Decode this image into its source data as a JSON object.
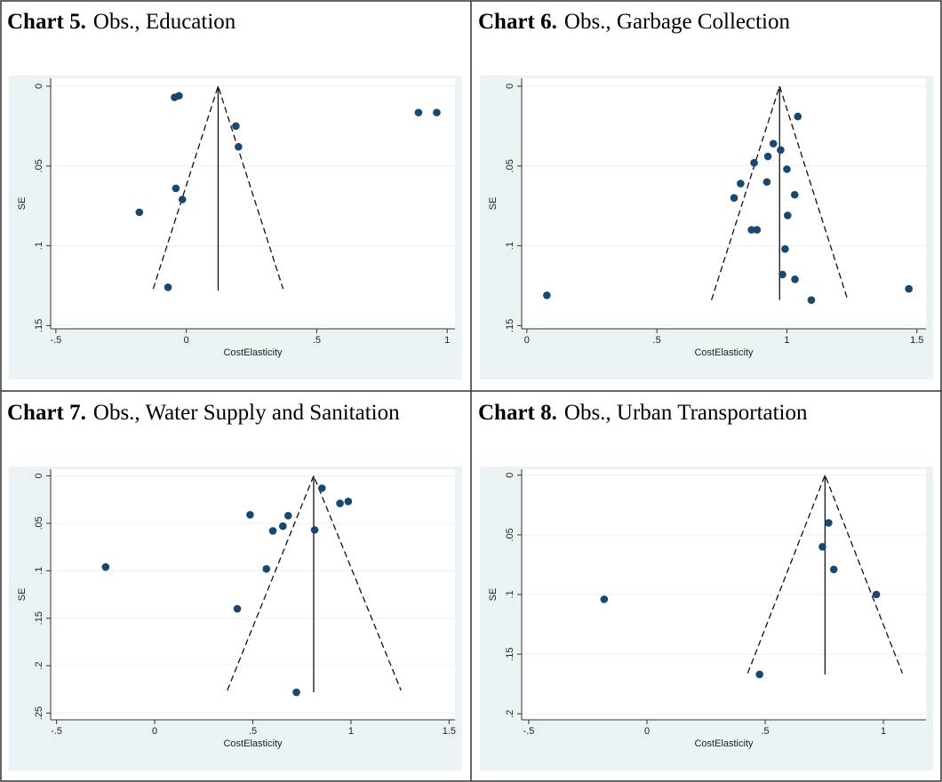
{
  "chart_data": [
    {
      "type": "scatter",
      "label": "Chart 5.",
      "title": "Obs., Education",
      "xlabel": "CostElasticity",
      "ylabel": "SE",
      "color": "#1a476f",
      "y_inverted": true,
      "grid": true,
      "x": [
        -0.045,
        -0.028,
        0.89,
        0.96,
        0.19,
        0.2,
        -0.04,
        -0.015,
        -0.18,
        -0.07
      ],
      "y": [
        0.007,
        0.006,
        0.0165,
        0.0165,
        0.025,
        0.038,
        0.064,
        0.071,
        0.079,
        0.126
      ],
      "xlim": [
        -0.52,
        1.03
      ],
      "ylim": [
        -0.005,
        0.152
      ],
      "xticks": [
        {
          "value": -0.5,
          "label": "-.5"
        },
        0,
        {
          "value": 0.5,
          "label": ".5"
        },
        1
      ],
      "yticks": [
        0,
        {
          "value": 0.05,
          "label": ".05"
        },
        {
          "value": 0.1,
          "label": ".1"
        },
        {
          "value": 0.15,
          "label": ".15"
        }
      ],
      "reference_lines": [
        {
          "x": [
            0.122,
            0.122
          ],
          "y": [
            0,
            0.128
          ],
          "dashed": false
        },
        {
          "x": [
            -0.127,
            0.122,
            0.371
          ],
          "y": [
            0.127,
            0,
            0.127
          ],
          "dashed": true
        }
      ]
    },
    {
      "type": "scatter",
      "label": "Chart 6.",
      "title": "Obs., Garbage Collection",
      "xlabel": "CostElasticity",
      "ylabel": "SE",
      "color": "#1a476f",
      "y_inverted": true,
      "grid": true,
      "x": [
        1.042,
        0.948,
        0.976,
        0.927,
        1.0,
        0.874,
        0.822,
        0.923,
        1.03,
        0.797,
        1.003,
        0.864,
        0.885,
        0.993,
        0.983,
        1.031,
        1.094,
        1.469,
        0.077
      ],
      "y": [
        0.019,
        0.036,
        0.04,
        0.044,
        0.052,
        0.048,
        0.061,
        0.06,
        0.068,
        0.07,
        0.081,
        0.09,
        0.09,
        0.102,
        0.118,
        0.121,
        0.134,
        0.127,
        0.131
      ],
      "xlim": [
        -0.02,
        1.535
      ],
      "ylim": [
        -0.005,
        0.152
      ],
      "xticks": [
        0,
        {
          "value": 0.5,
          "label": ".5"
        },
        1,
        1.5
      ],
      "yticks": [
        0,
        {
          "value": 0.05,
          "label": ".05"
        },
        {
          "value": 0.1,
          "label": ".1"
        },
        {
          "value": 0.15,
          "label": ".15"
        }
      ],
      "reference_lines": [
        {
          "x": [
            0.972,
            0.972
          ],
          "y": [
            0,
            0.134
          ],
          "dashed": false
        },
        {
          "x": [
            0.71,
            0.972,
            1.234
          ],
          "y": [
            0.134,
            0,
            0.134
          ],
          "dashed": true
        }
      ]
    },
    {
      "type": "scatter",
      "label": "Chart 7.",
      "title": "Obs., Water Supply and Sanitation",
      "xlabel": "CostElasticity",
      "ylabel": "SE",
      "color": "#1a476f",
      "y_inverted": true,
      "grid": true,
      "x": [
        0.852,
        0.986,
        0.944,
        0.486,
        0.68,
        0.653,
        0.602,
        0.815,
        -0.25,
        0.569,
        0.421,
        0.722
      ],
      "y": [
        0.013,
        0.027,
        0.029,
        0.041,
        0.042,
        0.053,
        0.058,
        0.057,
        0.096,
        0.098,
        0.14,
        0.228
      ],
      "xlim": [
        -0.53,
        1.53
      ],
      "ylim": [
        -0.007,
        0.257
      ],
      "xticks": [
        {
          "value": -0.5,
          "label": "-.5"
        },
        0,
        {
          "value": 0.5,
          "label": ".5"
        },
        1,
        1.5
      ],
      "yticks": [
        0,
        {
          "value": 0.05,
          "label": ".05"
        },
        {
          "value": 0.1,
          "label": ".1"
        },
        {
          "value": 0.15,
          "label": ".15"
        },
        {
          "value": 0.2,
          "label": ".2"
        },
        {
          "value": 0.25,
          "label": ".25"
        }
      ],
      "reference_lines": [
        {
          "x": [
            0.81,
            0.81
          ],
          "y": [
            0,
            0.228
          ],
          "dashed": false
        },
        {
          "x": [
            0.37,
            0.81,
            1.255
          ],
          "y": [
            0.226,
            0,
            0.226
          ],
          "dashed": true
        }
      ]
    },
    {
      "type": "scatter",
      "label": "Chart 8.",
      "title": "Obs., Urban Transportation",
      "xlabel": "CostElasticity",
      "ylabel": "SE",
      "color": "#1a476f",
      "y_inverted": true,
      "grid": true,
      "x": [
        0.768,
        0.742,
        0.79,
        0.97,
        -0.181,
        0.476
      ],
      "y": [
        0.04,
        0.06,
        0.079,
        0.1,
        0.104,
        0.167
      ],
      "xlim": [
        -0.53,
        1.18
      ],
      "ylim": [
        -0.005,
        0.205
      ],
      "xticks": [
        {
          "value": -0.5,
          "label": "-.5"
        },
        0,
        {
          "value": 0.5,
          "label": ".5"
        },
        1
      ],
      "yticks": [
        0,
        {
          "value": 0.05,
          "label": ".05"
        },
        {
          "value": 0.1,
          "label": ".1"
        },
        {
          "value": 0.15,
          "label": ".15"
        },
        {
          "value": 0.2,
          "label": ".2"
        }
      ],
      "reference_lines": [
        {
          "x": [
            0.753,
            0.753
          ],
          "y": [
            0,
            0.167
          ],
          "dashed": false
        },
        {
          "x": [
            0.426,
            0.753,
            1.08
          ],
          "y": [
            0.166,
            0,
            0.166
          ],
          "dashed": true
        }
      ]
    }
  ]
}
